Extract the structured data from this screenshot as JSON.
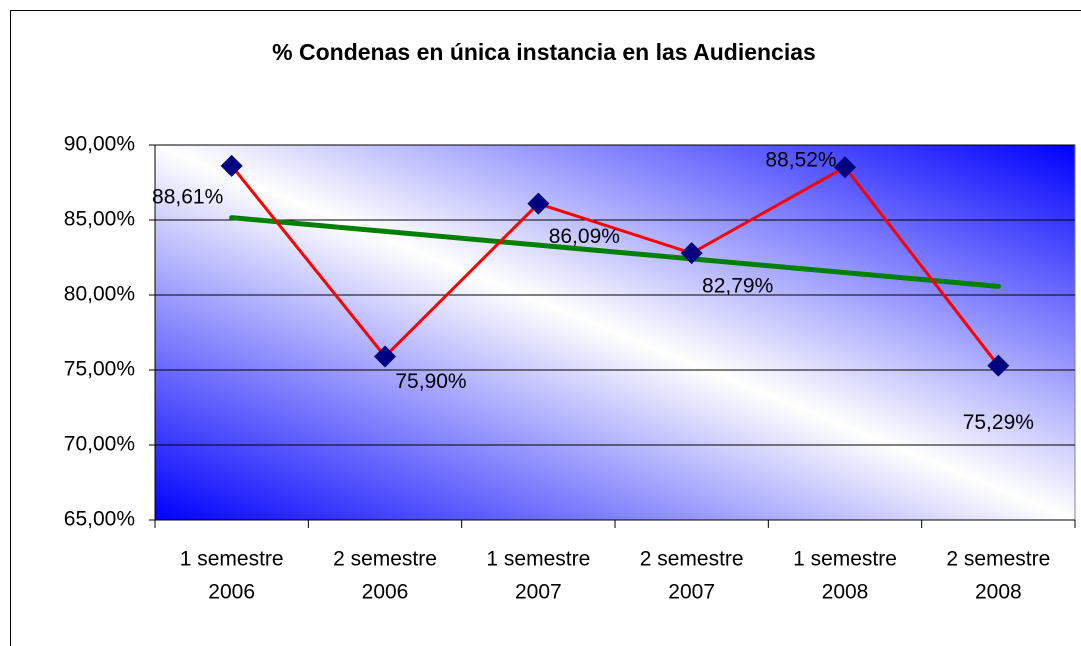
{
  "chart_data": {
    "type": "line",
    "title": "% Condenas en única instancia en las Audiencias",
    "categories": [
      [
        "1 semestre",
        "2006"
      ],
      [
        "2 semestre",
        "2006"
      ],
      [
        "1 semestre",
        "2007"
      ],
      [
        "2 semestre",
        "2007"
      ],
      [
        "1 semestre",
        "2008"
      ],
      [
        "2 semestre",
        "2008"
      ]
    ],
    "series": [
      {
        "color": "#ff0000",
        "marker_color": "#000080",
        "values": [
          88.61,
          75.9,
          86.09,
          82.79,
          88.52,
          75.29
        ],
        "value_labels": [
          "88,61%",
          "75,90%",
          "86,09%",
          "82,79%",
          "88,52%",
          "75,29%"
        ]
      }
    ],
    "ylim": [
      65,
      90
    ],
    "yticks": [
      {
        "value": 65,
        "label": "65,00%"
      },
      {
        "value": 70,
        "label": "70,00%"
      },
      {
        "value": 75,
        "label": "75,00%"
      },
      {
        "value": 80,
        "label": "80,00%"
      },
      {
        "value": 85,
        "label": "85,00%"
      },
      {
        "value": 90,
        "label": "90,00%"
      }
    ],
    "grid": true,
    "trendline": true,
    "trendline_color": "#008000"
  }
}
